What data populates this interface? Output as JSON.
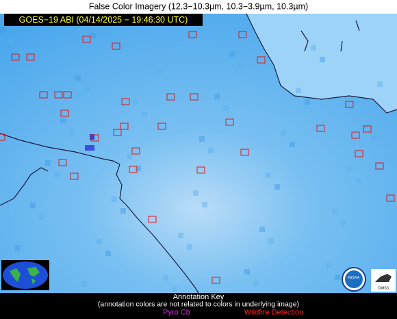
{
  "header": {
    "title": "False Color Imagery (12.3−10.3µm, 10.3−3.9µm, 10.3µm)",
    "timestamp": "GOES−19 ABI (04/14/2025 − 19:46:30 UTC)"
  },
  "key": {
    "title": "Annotation Key",
    "note": "(annotation colors are not related to colors in underlying image)",
    "items": [
      "Pyro Cb",
      "Wildfire Detection"
    ]
  },
  "logos": [
    "NOAA",
    "CIMSS"
  ]
}
